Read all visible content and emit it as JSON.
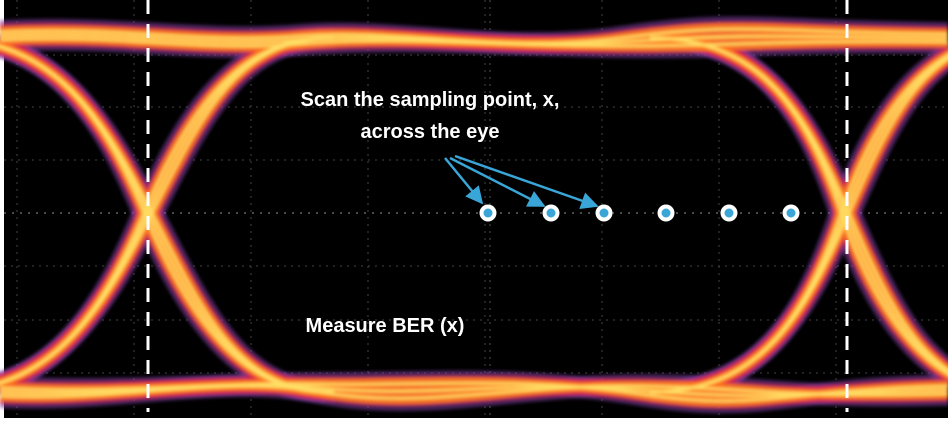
{
  "annotations": {
    "scan_line1": "Scan the sampling point, x,",
    "scan_line2": "across the eye",
    "measure": "Measure BER (x)"
  }
}
